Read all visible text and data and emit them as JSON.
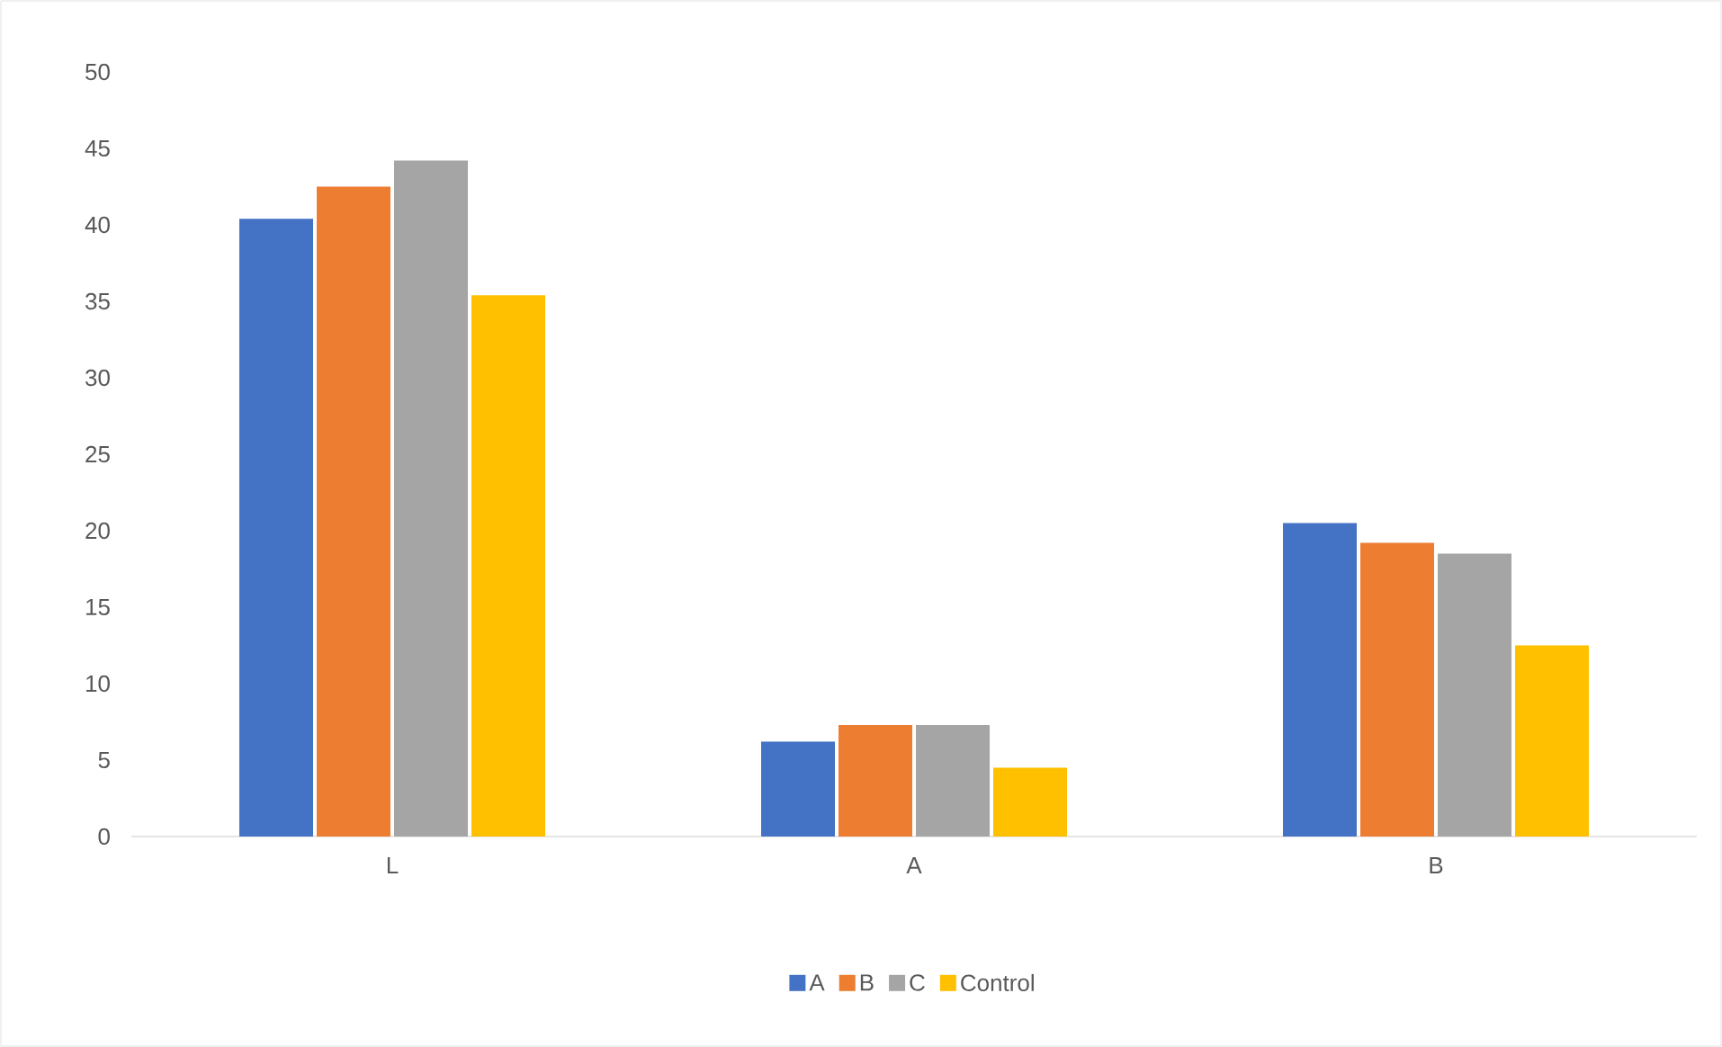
{
  "chart_data": {
    "type": "bar",
    "categories": [
      "L",
      "A",
      "B"
    ],
    "series": [
      {
        "name": "A",
        "color": "#4472c4",
        "values": [
          40.4,
          6.2,
          20.5
        ]
      },
      {
        "name": "B",
        "color": "#ed7d31",
        "values": [
          42.5,
          7.3,
          19.2
        ]
      },
      {
        "name": "C",
        "color": "#a5a5a5",
        "values": [
          44.2,
          7.3,
          18.5
        ]
      },
      {
        "name": "Control",
        "color": "#ffc000",
        "values": [
          35.4,
          4.5,
          12.5
        ]
      }
    ],
    "ylim": [
      0,
      50
    ],
    "yticks": [
      0,
      5,
      10,
      15,
      20,
      25,
      30,
      35,
      40,
      45,
      50
    ],
    "grid": false,
    "legend": "bottom"
  }
}
